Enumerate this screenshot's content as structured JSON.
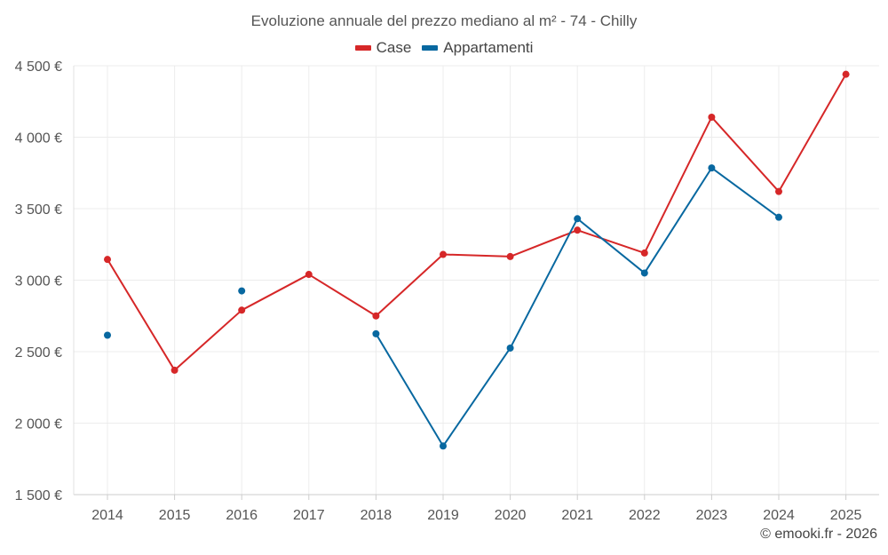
{
  "chart_data": {
    "type": "line",
    "title": "Evoluzione annuale del prezzo mediano al m² - 74 - Chilly",
    "categories": [
      "2014",
      "2015",
      "2016",
      "2017",
      "2018",
      "2019",
      "2020",
      "2021",
      "2022",
      "2023",
      "2024",
      "2025"
    ],
    "ylim": [
      1500,
      4500
    ],
    "yticks": [
      1500,
      2000,
      2500,
      3000,
      3500,
      4000,
      4500
    ],
    "ytick_labels": [
      "1 500 €",
      "2 000 €",
      "2 500 €",
      "3 000 €",
      "3 500 €",
      "4 000 €",
      "4 500 €"
    ],
    "grid": true,
    "legend_position": "top-center",
    "series": [
      {
        "name": "Case",
        "color": "#d62728",
        "values": [
          3145,
          2370,
          2790,
          3040,
          2750,
          3180,
          3165,
          3350,
          3190,
          4140,
          3620,
          4440
        ]
      },
      {
        "name": "Appartamenti",
        "color": "#0868a0",
        "values": [
          2615,
          null,
          2925,
          null,
          2625,
          1840,
          2525,
          3430,
          3050,
          3785,
          3440,
          null
        ]
      }
    ]
  },
  "footer": {
    "copyright": "© emooki.fr - 2026"
  }
}
